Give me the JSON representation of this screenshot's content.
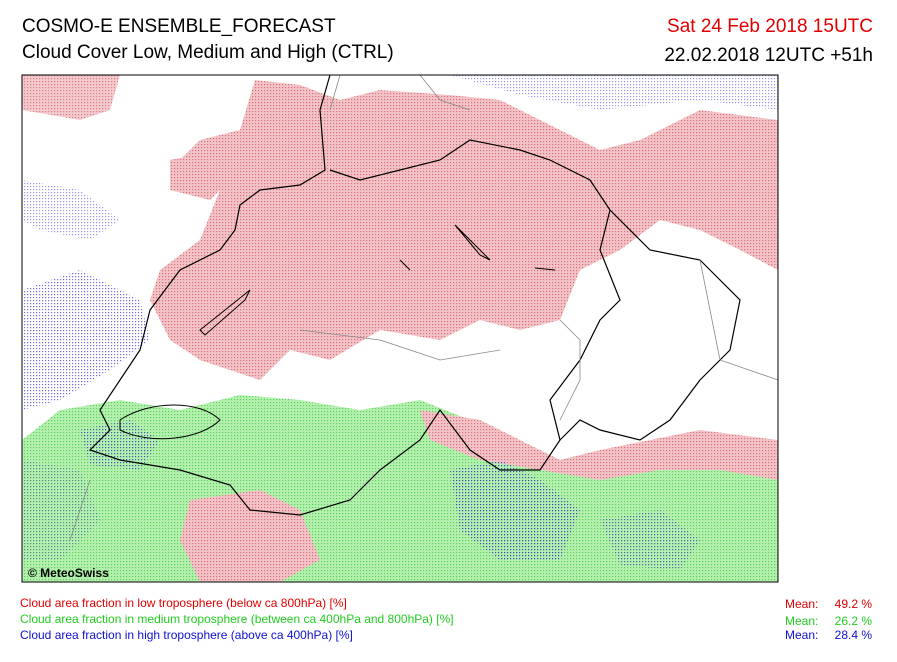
{
  "header": {
    "title": "COSMO-E ENSEMBLE_FORECAST",
    "subtitle": "Cloud Cover Low, Medium and High (CTRL)",
    "valid_time": "Sat 24 Feb 2018 15UTC",
    "run_time": "22.02.2018 12UTC +51h"
  },
  "map": {
    "credit": "© MeteoSwiss"
  },
  "legend": [
    {
      "label": "Cloud area fraction in low troposphere (below ca 800hPa) [%]",
      "mean_label": "Mean:",
      "mean": "49.2 %"
    },
    {
      "label": "Cloud area fraction in medium troposphere (between ca 400hPa and 800hPa) [%]",
      "mean_label": "Mean:",
      "mean": "26.2 %"
    },
    {
      "label": "Cloud area fraction in high troposphere (above ca 400hPa) [%]",
      "mean_label": "Mean:",
      "mean": "28.4 %"
    }
  ]
}
